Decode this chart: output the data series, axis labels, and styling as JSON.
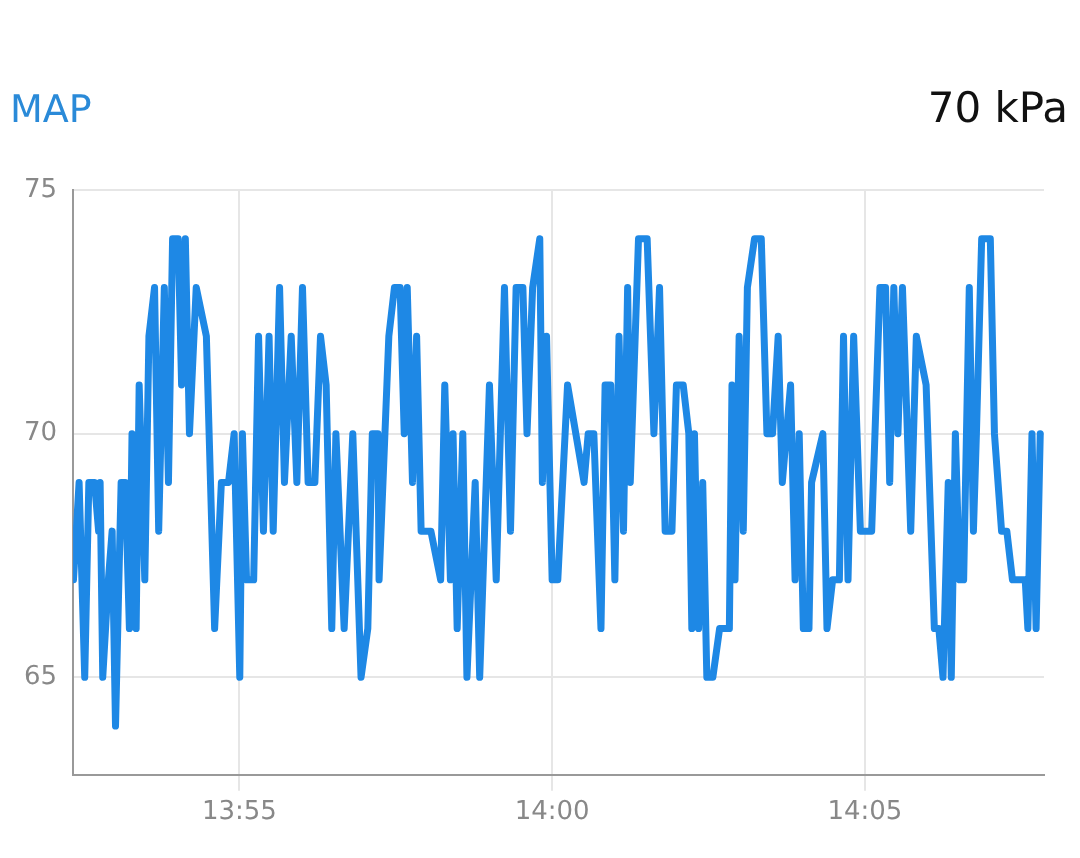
{
  "chart_data": {
    "type": "line",
    "title": "MAP",
    "subtitle": "70 kPa",
    "x": [
      13.8725,
      13.874,
      13.8755,
      13.8766,
      13.8781,
      13.8792,
      13.8796,
      13.8803,
      13.8818,
      13.8828,
      13.8837,
      13.8852,
      13.8863,
      13.8874,
      13.8881,
      13.8892,
      13.89,
      13.8915,
      13.8926,
      13.8941,
      13.8952,
      13.8967,
      13.8978,
      13.8989,
      13.9004,
      13.9013,
      13.9023,
      13.9034,
      13.9052,
      13.9079,
      13.9101,
      13.9119,
      13.9138,
      13.9153,
      13.9168,
      13.9175,
      13.9186,
      13.9205,
      13.9218,
      13.9231,
      13.9246,
      13.9257,
      13.9274,
      13.9287,
      13.9305,
      13.932,
      13.9335,
      13.935,
      13.9368,
      13.9383,
      13.9398,
      13.9413,
      13.9424,
      13.9446,
      13.9469,
      13.9491,
      13.9509,
      13.9521,
      13.9536,
      13.9539,
      13.9565,
      13.958,
      13.9595,
      13.9606,
      13.9614,
      13.9628,
      13.9639,
      13.9651,
      13.9677,
      13.9703,
      13.9714,
      13.9729,
      13.9736,
      13.9747,
      13.9762,
      13.9773,
      13.9795,
      13.9807,
      13.9833,
      13.9851,
      13.9873,
      13.9889,
      13.9904,
      13.9922,
      13.9933,
      13.9948,
      13.9967,
      13.9974,
      13.9985,
      14.0,
      14.0015,
      14.0041,
      14.0085,
      14.0096,
      14.0111,
      14.013,
      14.0141,
      14.0156,
      14.0167,
      14.0178,
      14.019,
      14.0201,
      14.0208,
      14.023,
      14.0253,
      14.0271,
      14.0286,
      14.0301,
      14.0319,
      14.0331,
      14.0349,
      14.0364,
      14.0372,
      14.0379,
      14.039,
      14.0401,
      14.0412,
      14.0428,
      14.0446,
      14.0472,
      14.0479,
      14.0487,
      14.0498,
      14.0509,
      14.052,
      14.0539,
      14.0557,
      14.0572,
      14.0587,
      14.0602,
      14.0613,
      14.0624,
      14.0635,
      14.0647,
      14.0658,
      14.0669,
      14.0684,
      14.0691,
      14.0721,
      14.0732,
      14.0747,
      14.0765,
      14.0776,
      14.0788,
      14.0803,
      14.0821,
      14.0851,
      14.0873,
      14.0888,
      14.0899,
      14.091,
      14.0921,
      14.0933,
      14.0955,
      14.097,
      14.0996,
      14.1018,
      14.103,
      14.1041,
      14.1055,
      14.1063,
      14.1074,
      14.1085,
      14.1096,
      14.1111,
      14.1122,
      14.113,
      14.1144,
      14.1167,
      14.1178,
      14.1197,
      14.1211,
      14.1226,
      14.126,
      14.1267,
      14.1278,
      14.1289,
      14.13
    ],
    "series": [
      {
        "color": "#1e88e5",
        "values": [
          67,
          69,
          65,
          69,
          69,
          68,
          69,
          65,
          67,
          68,
          64,
          69,
          69,
          66,
          70,
          66,
          71,
          67,
          72,
          73,
          68,
          73,
          69,
          74,
          74,
          71,
          74,
          70,
          73,
          72,
          66,
          69,
          69,
          70,
          65,
          70,
          67,
          67,
          72,
          68,
          72,
          68,
          73,
          69,
          72,
          69,
          73,
          69,
          69,
          72,
          71,
          66,
          70,
          66,
          70,
          65,
          66,
          70,
          70,
          67,
          72,
          73,
          73,
          70,
          73,
          69,
          72,
          68,
          68,
          67,
          71,
          67,
          70,
          66,
          70,
          65,
          69,
          65,
          71,
          67,
          73,
          68,
          73,
          73,
          70,
          73,
          74,
          69,
          72,
          67,
          67,
          71,
          69,
          70,
          70,
          66,
          71,
          71,
          67,
          72,
          68,
          73,
          69,
          74,
          74,
          70,
          73,
          68,
          68,
          71,
          71,
          70,
          66,
          70,
          66,
          69,
          65,
          65,
          66,
          66,
          71,
          67,
          72,
          68,
          73,
          74,
          74,
          70,
          70,
          72,
          69,
          70,
          71,
          67,
          70,
          66,
          66,
          69,
          70,
          66,
          67,
          67,
          72,
          67,
          72,
          68,
          68,
          73,
          73,
          69,
          73,
          70,
          73,
          68,
          72,
          71,
          66,
          66,
          65,
          69,
          65,
          70,
          67,
          67,
          73,
          68,
          70,
          74,
          74,
          70,
          68,
          68,
          67,
          67,
          66,
          70,
          66,
          70
        ]
      }
    ],
    "xlim": [
      13.8724,
      14.131
    ],
    "xticks": [
      {
        "value": 13.9167,
        "label": "13:55"
      },
      {
        "value": 14,
        "label": "14:00"
      },
      {
        "value": 14.0833,
        "label": "14:05"
      }
    ],
    "ylim": [
      63,
      75
    ],
    "yticks": [
      65,
      70,
      75
    ],
    "grid": true,
    "legend": false,
    "marker": "none",
    "line_style": "solid"
  }
}
